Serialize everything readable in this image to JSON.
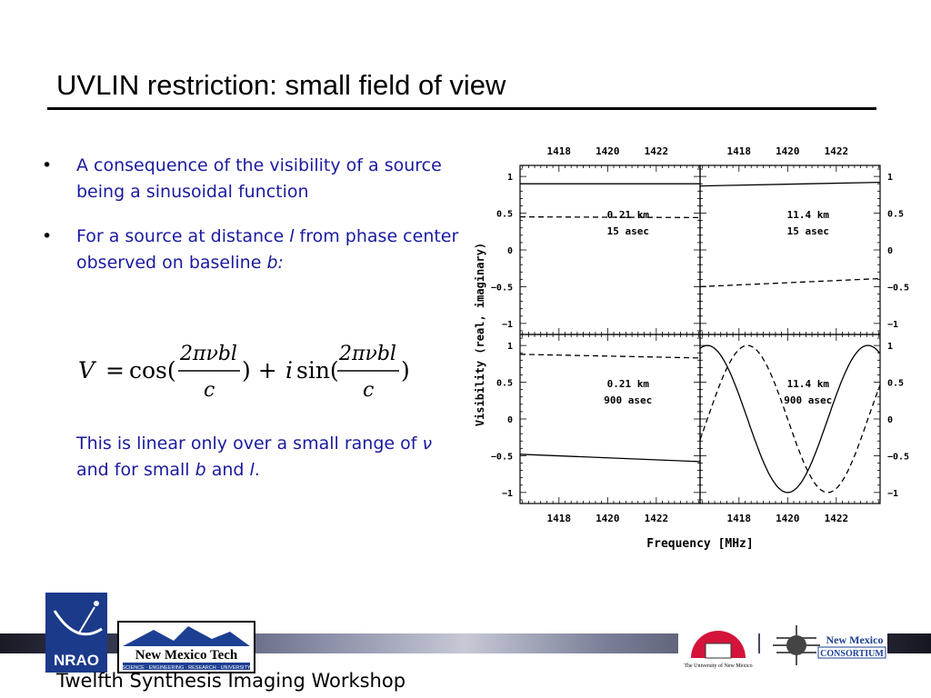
{
  "slide": {
    "title": "UVLIN restriction: small field of view",
    "bullets": [
      {
        "text_a": "A consequence of the visibility of a source being a sinusoidal function"
      },
      {
        "text_a": "For a source at distance ",
        "italic_l": "l",
        "text_b": " from phase center observed on baseline ",
        "italic_b": "b:"
      }
    ],
    "equation": {
      "lhs": "V",
      "cos": "cos(",
      "num": "2πνbl",
      "den": "c",
      "close1": ") + ",
      "i": "i",
      "sin": "sin(",
      "close2": ")",
      "equals": "="
    },
    "note": {
      "text_a": "This is linear only over a small range of ",
      "nu": "ν",
      "text_b": " and for small ",
      "b": "b",
      "text_c": " and ",
      "l": "l",
      "text_d": "."
    },
    "footer": "Twelfth Synthesis Imaging Workshop",
    "logos": {
      "nrao": "NRAO",
      "nmt_name": "New Mexico Tech",
      "nmt_sub": "SCIENCE · ENGINEERING · RESEARCH · UNIVERSITY",
      "unm": "The University of New Mexico",
      "nmc_top": "New Mexico",
      "nmc_bottom": "CONSORTIUM"
    }
  },
  "chart_data": {
    "type": "line",
    "xlabel": "Frequency [MHz]",
    "ylabel": "Visibility (real, imaginary)",
    "x_ticks": [
      "1418",
      "1420",
      "1422"
    ],
    "y_ticks": [
      "1",
      "0.5",
      "0",
      "−0.5",
      "−1"
    ],
    "y_ticks_right": [
      "1",
      "0.5",
      "0",
      "−0.5",
      "−1"
    ],
    "xlim": [
      1416.4,
      1423.8
    ],
    "ylim": [
      -1.15,
      1.15
    ],
    "panels": [
      {
        "position": "top-left",
        "label1": "0.21 km",
        "label2": "15 asec",
        "series": [
          {
            "style": "solid",
            "x": [
              1416.4,
              1423.8
            ],
            "y": [
              0.9,
              0.9
            ]
          },
          {
            "style": "dashed",
            "x": [
              1416.4,
              1423.8
            ],
            "y": [
              0.45,
              0.44
            ]
          }
        ]
      },
      {
        "position": "top-right",
        "label1": "11.4 km",
        "label2": "15 asec",
        "series": [
          {
            "style": "solid",
            "x": [
              1416.4,
              1423.8
            ],
            "y": [
              0.87,
              0.92
            ]
          },
          {
            "style": "dashed",
            "x": [
              1416.4,
              1423.8
            ],
            "y": [
              -0.5,
              -0.39
            ]
          }
        ]
      },
      {
        "position": "bottom-left",
        "label1": "0.21 km",
        "label2": "900 asec",
        "series": [
          {
            "style": "dashed",
            "x": [
              1416.4,
              1423.8
            ],
            "y": [
              0.88,
              0.83
            ]
          },
          {
            "style": "solid",
            "x": [
              1416.4,
              1423.8
            ],
            "y": [
              -0.48,
              -0.58
            ]
          }
        ]
      },
      {
        "position": "bottom-right",
        "label1": "11.4 km",
        "label2": "900 asec",
        "series": [
          {
            "style": "solid",
            "func": "cos",
            "period_mhz": 6.6,
            "peak_at": 1423.3
          },
          {
            "style": "dashed",
            "func": "sin",
            "period_mhz": 6.6,
            "peak_at": 1418.35
          }
        ]
      }
    ]
  }
}
